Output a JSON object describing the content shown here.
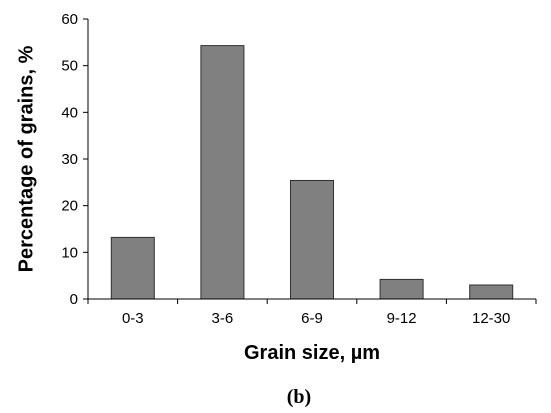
{
  "chart_data": {
    "type": "bar",
    "categories": [
      "0-3",
      "3-6",
      "6-9",
      "9-12",
      "12-30"
    ],
    "values": [
      13.2,
      54.3,
      25.4,
      4.2,
      3.0
    ],
    "xlabel": "Grain size, µm",
    "ylabel": "Percentage of  grains, %",
    "ylim": [
      0,
      60
    ],
    "yticks": [
      0,
      10,
      20,
      30,
      40,
      50,
      60
    ],
    "grid": false,
    "legend": "none",
    "bar_color": "#808080",
    "bar_edge_color": "#303030"
  },
  "panel_label": "(b)"
}
